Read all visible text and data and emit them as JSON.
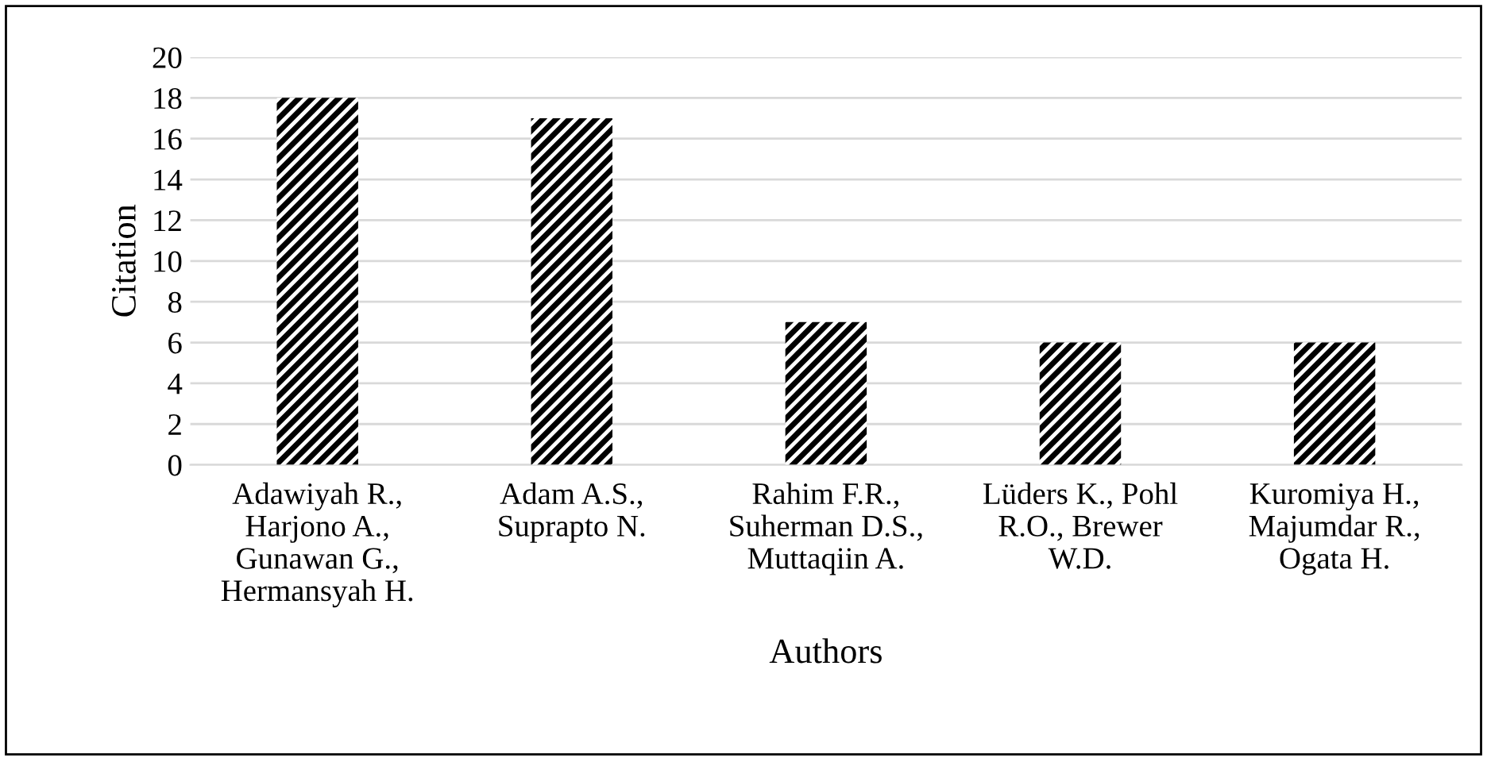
{
  "chart_data": {
    "type": "bar",
    "xlabel": "Authors",
    "ylabel": "Citation",
    "categories": [
      "Adawiyah R.,\nHarjono A.,\nGunawan G.,\nHermansyah H.",
      "Adam A.S.,\nSuprapto N.",
      "Rahim F.R.,\nSuherman D.S.,\nMuttaqiin A.",
      "Lüders K., Pohl\nR.O., Brewer\nW.D.",
      "Kuromiya H.,\nMajumdar R.,\nOgata H."
    ],
    "values": [
      18,
      17,
      7,
      6,
      6
    ],
    "color": "#000000",
    "ylim": [
      0,
      20
    ],
    "yticks": [
      0,
      2,
      4,
      6,
      8,
      10,
      12,
      14,
      16,
      18,
      20
    ],
    "grid": "y",
    "legend": false
  }
}
